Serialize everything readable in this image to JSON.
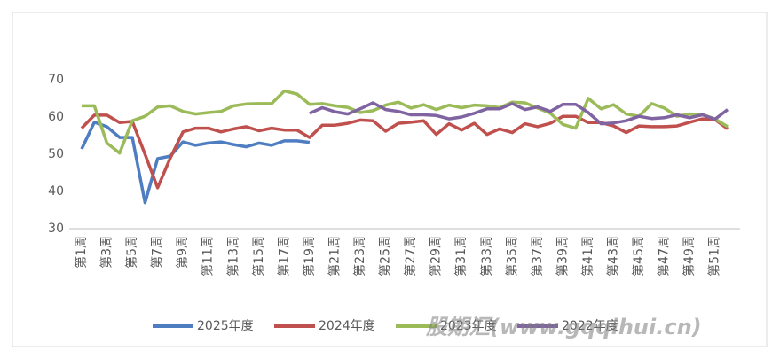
{
  "chart_data": {
    "type": "line",
    "categories": [
      "第1周",
      null,
      "第3周",
      null,
      "第5周",
      null,
      "第7周",
      null,
      "第9周",
      null,
      "第11周",
      null,
      "第13周",
      null,
      "第15周",
      null,
      "第17周",
      null,
      "第19周",
      null,
      "第21周",
      null,
      "第23周",
      null,
      "第25周",
      null,
      "第27周",
      null,
      "第29周",
      null,
      "第31周",
      null,
      "第33周",
      null,
      "第35周",
      null,
      "第37周",
      null,
      "第39周",
      null,
      "第41周",
      null,
      "第43周",
      null,
      "第45周",
      null,
      "第47周",
      null,
      "第49周",
      null,
      "第51周",
      null
    ],
    "series": [
      {
        "name": "2025年度",
        "color": "#4e7ec1",
        "values": [
          51.4,
          58.6,
          57.4,
          54.5,
          54.5,
          37,
          48.8,
          49.5,
          53.3,
          52.4,
          53,
          53.3,
          52.6,
          52,
          53,
          52.4,
          53.6,
          53.6,
          53.2,
          null,
          null,
          null,
          null,
          null,
          null,
          null,
          null,
          null,
          null,
          null,
          null,
          null,
          null,
          null,
          null,
          null,
          null,
          null,
          null,
          null,
          null,
          null,
          null,
          null,
          null,
          null,
          null,
          null,
          null,
          null,
          null,
          null
        ]
      },
      {
        "name": "2024年度",
        "color": "#c0504d",
        "values": [
          57,
          60.5,
          60.5,
          58.5,
          58.8,
          50,
          41,
          49,
          56,
          57,
          57,
          56,
          56.8,
          57.4,
          56.3,
          57,
          56.5,
          56.5,
          54.5,
          57.8,
          57.8,
          58.3,
          59.2,
          59,
          56.2,
          58.3,
          58.6,
          59,
          55.3,
          58.2,
          56.5,
          58.3,
          55.3,
          56.8,
          55.8,
          58.2,
          57.4,
          58.3,
          60.2,
          60.2,
          58.5,
          58.5,
          57.6,
          55.8,
          57.6,
          57.4,
          57.4,
          57.6,
          58.6,
          59.5,
          59.3,
          56.8
        ]
      },
      {
        "name": "2023年度",
        "color": "#9bbb59",
        "values": [
          63,
          63,
          53,
          50.3,
          59,
          60.2,
          62.7,
          63,
          61.5,
          60.8,
          61.2,
          61.5,
          63,
          63.5,
          63.6,
          63.6,
          67,
          66.2,
          63.4,
          63.6,
          63,
          62.6,
          61.2,
          61.7,
          63.2,
          64,
          62.4,
          63.3,
          62,
          63.2,
          62.5,
          63.2,
          63,
          62.5,
          64,
          63.8,
          62.4,
          61,
          58,
          57,
          65,
          62.2,
          63.3,
          60.8,
          60.2,
          63.6,
          62.4,
          60.2,
          60.8,
          60.7,
          59.5,
          57.4
        ]
      },
      {
        "name": "2022年度",
        "color": "#8064a2",
        "values": [
          null,
          null,
          null,
          null,
          null,
          null,
          null,
          null,
          null,
          null,
          null,
          null,
          null,
          null,
          null,
          null,
          null,
          null,
          61,
          62.5,
          61.4,
          60.8,
          62.2,
          63.8,
          62,
          61.5,
          60.6,
          60.6,
          60.4,
          59.5,
          60,
          61,
          62.2,
          62.2,
          63.6,
          62,
          62.7,
          61.5,
          63.4,
          63.4,
          61.2,
          58.2,
          58.4,
          59,
          60.2,
          59.6,
          59.8,
          60.6,
          59.8,
          60.6,
          59.4,
          62
        ]
      }
    ],
    "ylim": [
      30,
      70
    ],
    "yticks": [
      30,
      40,
      50,
      60,
      70
    ],
    "grid": false,
    "watermark": "股期汇(www.gqqihui.cn)"
  }
}
